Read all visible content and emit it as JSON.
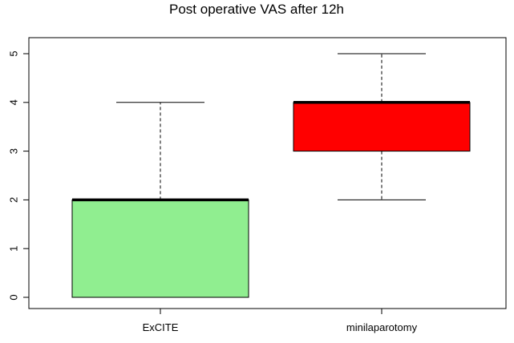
{
  "chart_data": {
    "type": "box",
    "title": "Post operative VAS after 12h",
    "xlabel": "",
    "ylabel": "",
    "categories": [
      "ExCITE",
      "minilaparotomy"
    ],
    "series": [
      {
        "name": "ExCITE",
        "min": 0,
        "q1": 0,
        "median": 2,
        "q3": 2,
        "max": 4,
        "color": "#90ee90"
      },
      {
        "name": "minilaparotomy",
        "min": 2,
        "q1": 3,
        "median": 4,
        "q3": 4,
        "max": 5,
        "color": "#ff0000"
      }
    ],
    "ylim": [
      0,
      5
    ],
    "yticks": [
      "0",
      "1",
      "2",
      "3",
      "4",
      "5"
    ],
    "grid": false,
    "legend": "none"
  }
}
